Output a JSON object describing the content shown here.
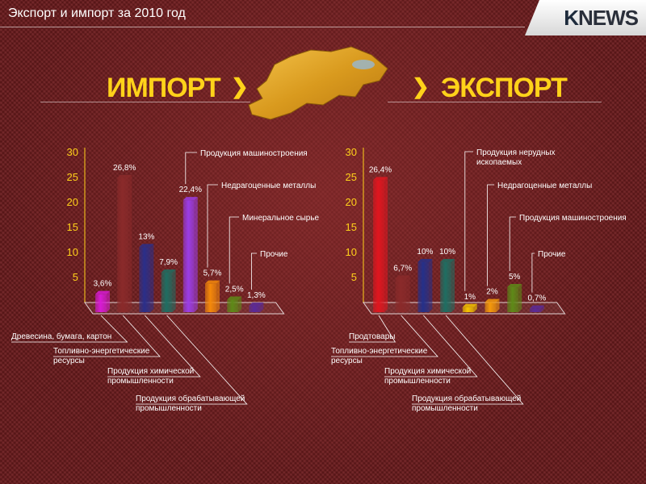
{
  "title": "Экспорт и импорт за 2010 год",
  "logo": {
    "k": "K",
    "rest": "NEWS"
  },
  "sections": {
    "import": "ИМПОРТ",
    "export": "ЭКСПОРТ"
  },
  "colors": {
    "accent": "#ffd21a",
    "series": [
      "#d81bd6",
      "#8a2a2a",
      "#2a2f8a",
      "#1f6e62",
      "#9b3de6",
      "#f5890a",
      "#5e8a18",
      "#5a2a9a",
      "#e0161f",
      "#8a2a2a",
      "#24308a",
      "#1f6e62",
      "#f5c400",
      "#f59a0a",
      "#5e8a18",
      "#5a2a9a"
    ]
  },
  "chart_data": [
    {
      "type": "bar",
      "title": "ИМПОРТ",
      "yticks": [
        5,
        10,
        15,
        20,
        25,
        30
      ],
      "ylim": [
        0,
        30
      ],
      "categories": [
        "Древесина, бумага, картон",
        "Топливно-энергетические ресурсы",
        "Продукция химической промышленности",
        "Продукция обрабатывающей промышленности",
        "Продукция машиностроения",
        "Недрагоценные металлы",
        "Минеральное сырье",
        "Прочие"
      ],
      "values": [
        3.6,
        26.8,
        13,
        7.9,
        22.4,
        5.7,
        2.5,
        1.3
      ],
      "data_labels": [
        "3,6%",
        "26,8%",
        "13%",
        "7,9%",
        "22,4%",
        "5,7%",
        "2,5%",
        "1,3%"
      ]
    },
    {
      "type": "bar",
      "title": "ЭКСПОРТ",
      "yticks": [
        5,
        10,
        15,
        20,
        25,
        30
      ],
      "ylim": [
        0,
        30
      ],
      "categories": [
        "Продтовары",
        "Топливно-энергетические ресурсы",
        "Продукция химической промышленности",
        "Продукция обрабатывающей промышленности",
        "Продукция нерудных ископаемых",
        "Недрагоценные металлы",
        "Продукция машиностроения",
        "Прочие"
      ],
      "values": [
        26.4,
        6.7,
        10,
        10,
        1,
        2,
        5,
        0.7
      ],
      "data_labels": [
        "26,4%",
        "6,7%",
        "10%",
        "10%",
        "1%",
        "2%",
        "5%",
        "0,7%"
      ]
    }
  ]
}
